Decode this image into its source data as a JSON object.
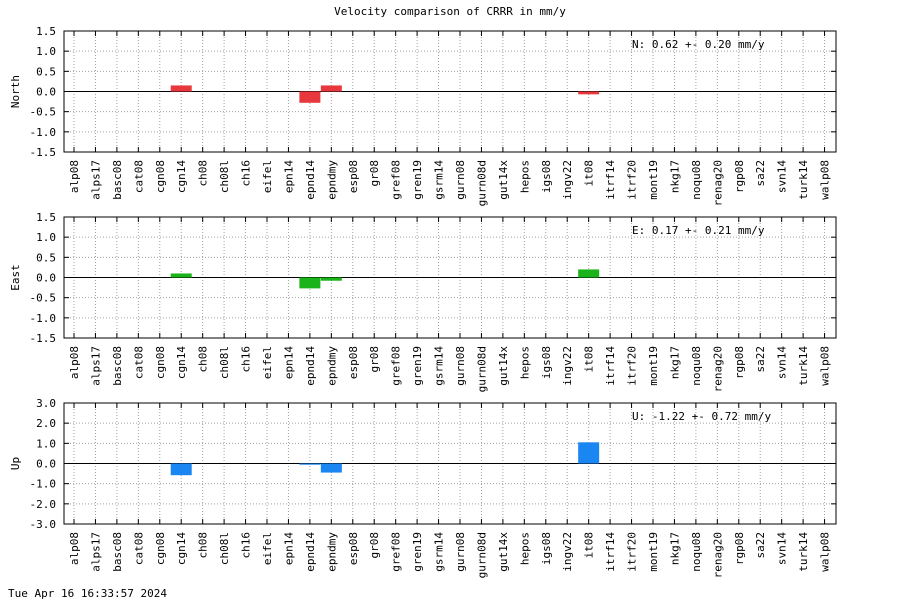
{
  "title": "Velocity comparison of CRRR in mm/y",
  "timestamp": "Tue Apr 16 16:33:57 2024",
  "stations": [
    "alp08",
    "alps17",
    "basc08",
    "cat08",
    "cgn08",
    "cgn14",
    "ch08",
    "ch08l",
    "ch16",
    "eifel",
    "epn14",
    "epnd14",
    "epndmy",
    "esp08",
    "gr08",
    "gref08",
    "gren19",
    "gsrm14",
    "gurn08",
    "gurn08d",
    "gut14x",
    "hepos",
    "igs08",
    "ingv22",
    "it08",
    "itrf14",
    "itrf20",
    "mont19",
    "nkg17",
    "noqu08",
    "renag20",
    "rgp08",
    "sa22",
    "svn14",
    "turk14",
    "walp08"
  ],
  "chart_data": [
    {
      "type": "bar",
      "ylabel": "North",
      "ylim": [
        -1.5,
        1.5
      ],
      "yticks": [
        "-1.5",
        "-1.0",
        "-0.5",
        "0.0",
        "0.5",
        "1.0",
        "1.5"
      ],
      "grid": true,
      "color": "#e8383d",
      "annotation": "N:   0.62 +-  0.20 mm/y",
      "values": {
        "cgn14": 0.15,
        "epnd14": -0.28,
        "epndmy": 0.15,
        "it08": -0.07
      }
    },
    {
      "type": "bar",
      "ylabel": "East",
      "ylim": [
        -1.5,
        1.5
      ],
      "yticks": [
        "-1.5",
        "-1.0",
        "-0.5",
        "0.0",
        "0.5",
        "1.0",
        "1.5"
      ],
      "grid": true,
      "color": "#1ab31a",
      "annotation": "E:   0.17 +-  0.21 mm/y",
      "values": {
        "cgn14": 0.1,
        "epnd14": -0.27,
        "epndmy": -0.08,
        "it08": 0.2
      }
    },
    {
      "type": "bar",
      "ylabel": "Up",
      "ylim": [
        -3.0,
        3.0
      ],
      "yticks": [
        "-3.0",
        "-2.0",
        "-1.0",
        "0.0",
        "1.0",
        "2.0",
        "3.0"
      ],
      "grid": true,
      "color": "#1a86f2",
      "annotation": "U:  -1.22 +-  0.72 mm/y",
      "values": {
        "cgn14": -0.58,
        "epnd14": -0.06,
        "epndmy": -0.45,
        "it08": 1.05
      }
    }
  ]
}
